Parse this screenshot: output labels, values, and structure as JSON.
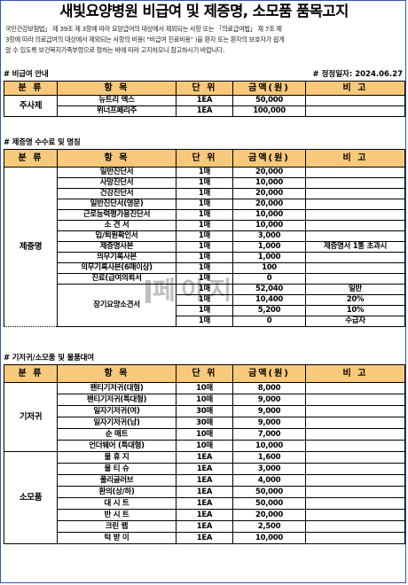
{
  "title": "새빛요양병원 비급여 및 제증명, 소모품 품목고지",
  "notice": [
    "국민건강보험법」 제 39조 제 3항에 따라 요양급여의 대상에서 제외되는 사항 또는 「의료급여법」 제 7조 제",
    "3항에 따라 의료급여의 대상에서 제외되는 사항의 비용( \"비급여 진료비용\" )을 환자 또는 환자의 보호자가 쉽게",
    "알 수 있도록 보건복지가족부령으로 정하는 바에 따라 고지하오니 참고하시기 바랍니다."
  ],
  "revision": "# 정정일자: 2024.06.27",
  "headers": {
    "category": "분 류",
    "item": "항 목",
    "unit": "단 위",
    "amount": "금액(원)",
    "note": "비 고"
  },
  "sections": {
    "noncovered": {
      "title": "# 비급여 안내",
      "category": "주사제",
      "rows": [
        {
          "item": "뉴트리 엑스",
          "unit": "1EA",
          "amount": "50,000",
          "note": ""
        },
        {
          "item": "위너프페리주",
          "unit": "1EA",
          "amount": "100,000",
          "note": ""
        }
      ]
    },
    "certificates": {
      "title": "# 제증명 수수료 및 명칭",
      "category": "제증명",
      "rows": [
        {
          "item": "일반진단서",
          "unit": "1매",
          "amount": "20,000",
          "note": ""
        },
        {
          "item": "사망진단서",
          "unit": "1매",
          "amount": "10,000",
          "note": ""
        },
        {
          "item": "건강진단서",
          "unit": "1매",
          "amount": "20,000",
          "note": ""
        },
        {
          "item": "일반진단서(영문)",
          "unit": "1매",
          "amount": "20,000",
          "note": ""
        },
        {
          "item": "근로능력평가용진단서",
          "unit": "1매",
          "amount": "10,000",
          "note": ""
        },
        {
          "item": "소 견 서",
          "unit": "1매",
          "amount": "10,000",
          "note": ""
        },
        {
          "item": "입/퇴원확인서",
          "unit": "1매",
          "amount": "3,000",
          "note": ""
        },
        {
          "item": "제증명사본",
          "unit": "1매",
          "amount": "1,000",
          "note": "제증명서 1통 초과시"
        },
        {
          "item": "의무기록사본",
          "unit": "1매",
          "amount": "1,000",
          "note": ""
        },
        {
          "item": "의무기록사본(6매이상)",
          "unit": "1매",
          "amount": "100",
          "note": ""
        },
        {
          "item": "진료(급여의뢰서",
          "unit": "1매",
          "amount": "0",
          "note": ""
        }
      ],
      "long_term": {
        "item": "장기요양소견서",
        "rows": [
          {
            "unit": "1매",
            "amount": "52,040",
            "note": "일반"
          },
          {
            "unit": "1매",
            "amount": "10,400",
            "note": "20%"
          },
          {
            "unit": "1매",
            "amount": "5,200",
            "note": "10%"
          },
          {
            "unit": "1매",
            "amount": "0",
            "note": "수급자"
          }
        ]
      }
    },
    "supplies": {
      "title": "# 기저귀/소모품 및 물품대여",
      "groups": [
        {
          "category": "기저귀",
          "rows": [
            {
              "item": "팬티기저귀(대형)",
              "unit": "10매",
              "amount": "8,000",
              "note": ""
            },
            {
              "item": "팬티기저귀(특대형)",
              "unit": "10매",
              "amount": "9,000",
              "note": ""
            },
            {
              "item": "일자기저귀(여)",
              "unit": "30매",
              "amount": "9,000",
              "note": ""
            },
            {
              "item": "일자기저귀(남)",
              "unit": "30매",
              "amount": "9,000",
              "note": ""
            },
            {
              "item": "순 매트",
              "unit": "10매",
              "amount": "7,000",
              "note": ""
            },
            {
              "item": "언더웨어 (특대형)",
              "unit": "10매",
              "amount": "10,000",
              "note": ""
            }
          ]
        },
        {
          "category": "소모품",
          "rows": [
            {
              "item": "물 휴 지",
              "unit": "1EA",
              "amount": "1,600",
              "note": ""
            },
            {
              "item": "물 티 슈",
              "unit": "1EA",
              "amount": "3,000",
              "note": ""
            },
            {
              "item": "폴리글러브",
              "unit": "1EA",
              "amount": "4,000",
              "note": ""
            },
            {
              "item": "환의(상/하)",
              "unit": "1EA",
              "amount": "50,000",
              "note": ""
            },
            {
              "item": "대 시 트",
              "unit": "1EA",
              "amount": "50,000",
              "note": ""
            },
            {
              "item": "반 시 트",
              "unit": "1EA",
              "amount": "20,000",
              "note": ""
            },
            {
              "item": "크린 랩",
              "unit": "1EA",
              "amount": "2,500",
              "note": ""
            },
            {
              "item": "턱 받 이",
              "unit": "1EA",
              "amount": "10,000",
              "note": ""
            }
          ]
        }
      ]
    }
  },
  "watermark": "페이지"
}
